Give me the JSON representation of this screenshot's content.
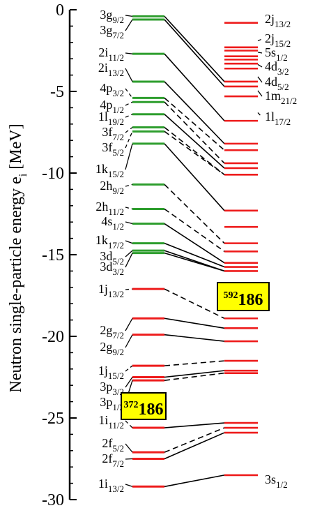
{
  "chart_data": {
    "type": "level-scheme",
    "ylabel_main": "Neutron single-particle energy  e",
    "ylabel_sub": "i",
    "ylabel_unit": "  [MeV]",
    "ylim": [
      -30,
      0
    ],
    "yticks": [
      0,
      -5,
      -10,
      -15,
      -20,
      -25,
      -30
    ],
    "colors": {
      "bound_shell": "#2e9e2e",
      "deep": "#ee1c1c",
      "box": "#ffff00"
    },
    "nucleus_left": {
      "mass": "372",
      "element": "186"
    },
    "nucleus_right": {
      "mass": "592",
      "element": "186"
    },
    "left_levels": [
      {
        "n": "3g",
        "j": "9/2",
        "e": -0.4,
        "c": "g"
      },
      {
        "n": "3g",
        "j": "7/2",
        "e": -0.6,
        "c": "g"
      },
      {
        "n": "2i",
        "j": "11/2",
        "e": -2.7,
        "c": "g"
      },
      {
        "n": "2i",
        "j": "13/2",
        "e": -4.4,
        "c": "g"
      },
      {
        "n": "4p",
        "j": "3/2",
        "e": -5.4,
        "c": "g"
      },
      {
        "n": "4p",
        "j": "1/2",
        "e": -5.65,
        "c": "g"
      },
      {
        "n": "1l",
        "j": "19/2",
        "e": -6.4,
        "c": "g"
      },
      {
        "n": "3f",
        "j": "7/2",
        "e": -7.2,
        "c": "g"
      },
      {
        "n": "3f",
        "j": "5/2",
        "e": -7.45,
        "c": "g"
      },
      {
        "n": "1k",
        "j": "15/2",
        "e": -8.2,
        "c": "g"
      },
      {
        "n": "2h",
        "j": "9/2",
        "e": -10.7,
        "c": "g"
      },
      {
        "n": "2h",
        "j": "11/2",
        "e": -12.2,
        "c": "g"
      },
      {
        "n": "4s",
        "j": "1/2",
        "e": -13.1,
        "c": "g"
      },
      {
        "n": "1k",
        "j": "17/2",
        "e": -14.3,
        "c": "g"
      },
      {
        "n": "3d",
        "j": "5/2",
        "e": -14.75,
        "c": "g"
      },
      {
        "n": "3d",
        "j": "3/2",
        "e": -14.9,
        "c": "g"
      },
      {
        "n": "1j",
        "j": "13/2",
        "e": -17.1,
        "c": "r"
      },
      {
        "n": "2g",
        "j": "7/2",
        "e": -18.9,
        "c": "r"
      },
      {
        "n": "2g",
        "j": "9/2",
        "e": -19.9,
        "c": "r"
      },
      {
        "n": "1j",
        "j": "15/2",
        "e": -21.8,
        "c": "r"
      },
      {
        "n": "3p",
        "j": "3/2",
        "e": -22.5,
        "c": "r"
      },
      {
        "n": "3p",
        "j": "1/2",
        "e": -22.7,
        "c": "r"
      },
      {
        "n": "1i",
        "j": "11/2",
        "e": -25.6,
        "c": "r"
      },
      {
        "n": "2f",
        "j": "5/2",
        "e": -27.1,
        "c": "r"
      },
      {
        "n": "2f",
        "j": "7/2",
        "e": -27.5,
        "c": "r"
      },
      {
        "n": "1i",
        "j": "13/2",
        "e": -29.2,
        "c": "r"
      }
    ],
    "right_levels": [
      {
        "e": -0.8
      },
      {
        "e": -2.3
      },
      {
        "e": -2.5
      },
      {
        "e": -2.85
      },
      {
        "e": -3.05
      },
      {
        "e": -3.3
      },
      {
        "e": -3.6
      },
      {
        "e": -4.4
      },
      {
        "e": -4.7
      },
      {
        "e": -5.3
      },
      {
        "e": -6.8
      },
      {
        "e": -8.2
      },
      {
        "e": -8.6
      },
      {
        "e": -9.4
      },
      {
        "e": -9.7
      },
      {
        "e": -10.1
      },
      {
        "e": -12.3
      },
      {
        "e": -13.3
      },
      {
        "e": -14.3
      },
      {
        "e": -14.8
      },
      {
        "e": -15.5
      },
      {
        "e": -15.75
      },
      {
        "e": -16.0
      },
      {
        "e": -18.9
      },
      {
        "e": -19.5
      },
      {
        "e": -20.3
      },
      {
        "e": -21.5
      },
      {
        "e": -22.1
      },
      {
        "e": -22.25
      },
      {
        "e": -25.3
      },
      {
        "e": -25.6
      },
      {
        "e": -25.9
      },
      {
        "e": -28.5
      }
    ],
    "right_labels": [
      {
        "n": "2j",
        "j": "13/2",
        "e": -0.8
      },
      {
        "n": "2j",
        "j": "15/2",
        "e": -1.9
      },
      {
        "n": "5s",
        "j": "1/2",
        "e": -2.6
      },
      {
        "n": "4d",
        "j": "3/2",
        "e": -3.35
      },
      {
        "n": "4d",
        "j": "5/2",
        "e": -4.1
      },
      {
        "n": "1m",
        "j": "21/2",
        "e": -4.95
      },
      {
        "n": "1l",
        "j": "17/2",
        "e": -6.3
      },
      {
        "n": "3s",
        "j": "1/2",
        "e": -28.8
      }
    ],
    "connections": [
      {
        "from": -0.4,
        "to": -4.4,
        "style": "solid"
      },
      {
        "from": -0.6,
        "to": -4.7,
        "style": "solid"
      },
      {
        "from": -2.7,
        "to": -6.8,
        "style": "solid"
      },
      {
        "from": -4.4,
        "to": -8.2,
        "style": "solid"
      },
      {
        "from": -5.4,
        "to": -8.6,
        "style": "dashed"
      },
      {
        "from": -5.65,
        "to": -9.4,
        "style": "dashed"
      },
      {
        "from": -6.4,
        "to": -9.7,
        "style": "solid"
      },
      {
        "from": -7.2,
        "to": -10.1,
        "style": "dashed"
      },
      {
        "from": -7.45,
        "to": -10.1,
        "style": "dashed"
      },
      {
        "from": -8.2,
        "to": -12.3,
        "style": "solid"
      },
      {
        "from": -10.7,
        "to": -14.3,
        "style": "dashed"
      },
      {
        "from": -12.2,
        "to": -14.8,
        "style": "dashed"
      },
      {
        "from": -13.1,
        "to": -15.5,
        "style": "solid"
      },
      {
        "from": -14.3,
        "to": -15.75,
        "style": "solid"
      },
      {
        "from": -14.75,
        "to": -16.0,
        "style": "solid"
      },
      {
        "from": -14.9,
        "to": -16.0,
        "style": "solid"
      },
      {
        "from": -17.1,
        "to": -18.9,
        "style": "dashed"
      },
      {
        "from": -18.9,
        "to": -19.5,
        "style": "solid"
      },
      {
        "from": -19.9,
        "to": -20.3,
        "style": "solid"
      },
      {
        "from": -21.8,
        "to": -21.5,
        "style": "dashed"
      },
      {
        "from": -22.5,
        "to": -22.1,
        "style": "solid"
      },
      {
        "from": -22.7,
        "to": -22.25,
        "style": "dashed"
      },
      {
        "from": -25.6,
        "to": -25.3,
        "style": "solid"
      },
      {
        "from": -27.1,
        "to": -25.6,
        "style": "dashed"
      },
      {
        "from": -27.5,
        "to": -25.9,
        "style": "solid"
      },
      {
        "from": -29.2,
        "to": -28.5,
        "style": "solid"
      }
    ],
    "right_top_leaders": [
      {
        "from": -4.4,
        "to": -0.8
      },
      {
        "from": -4.7,
        "to": -2.3
      }
    ]
  }
}
